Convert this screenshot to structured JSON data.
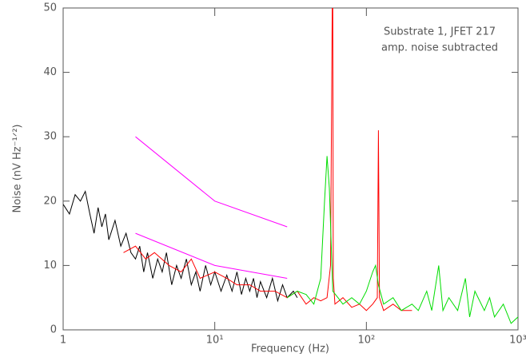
{
  "chart_data": {
    "type": "line",
    "xlabel": "Frequency (Hz)",
    "ylabel": "Noise (nV Hz⁻¹ᐟ²)",
    "annotations": [
      "Substrate 1, JFET 217",
      "amp. noise subtracted"
    ],
    "xscale": "log",
    "xlim": [
      1,
      1000
    ],
    "ylim": [
      0,
      50
    ],
    "xticks": [
      {
        "value": 1,
        "label": "1"
      },
      {
        "value": 10,
        "label": "10¹"
      },
      {
        "value": 100,
        "label": "10²"
      },
      {
        "value": 1000,
        "label": "10³"
      }
    ],
    "yticks": [
      0,
      10,
      20,
      30,
      40,
      50
    ],
    "series": [
      {
        "color": "#000000",
        "x": [
          1,
          1.1,
          1.2,
          1.3,
          1.4,
          1.5,
          1.6,
          1.7,
          1.8,
          1.9,
          2.0,
          2.2,
          2.4,
          2.6,
          2.8,
          3.0,
          3.2,
          3.4,
          3.6,
          3.9,
          4.2,
          4.5,
          4.8,
          5.2,
          5.6,
          6,
          6.5,
          7,
          7.5,
          8,
          8.7,
          9.4,
          10,
          11,
          12,
          13,
          14,
          15,
          16,
          17,
          18,
          19,
          20,
          22,
          24,
          26,
          28,
          30,
          33,
          35
        ],
        "values": [
          19.5,
          18,
          21,
          20,
          21.5,
          18,
          15,
          19,
          16,
          18,
          14,
          17,
          13,
          15,
          12,
          11,
          13,
          9,
          12,
          8,
          11,
          9,
          12,
          7,
          10,
          8,
          11,
          7,
          9,
          6,
          10,
          7,
          9,
          6,
          8.5,
          6,
          9,
          5.5,
          8,
          6,
          8,
          5,
          7.5,
          5,
          8,
          4.5,
          7,
          5,
          6,
          5
        ]
      },
      {
        "color": "#ff0000",
        "x": [
          2.5,
          3,
          3.5,
          4,
          5,
          6,
          7,
          8,
          10,
          12,
          14,
          17,
          20,
          25,
          30,
          35,
          40,
          45,
          50,
          55,
          58,
          59.5,
          60,
          60.5,
          62,
          70,
          80,
          90,
          100,
          110,
          118,
          120,
          122,
          130,
          150,
          170,
          200
        ],
        "values": [
          12,
          13,
          11,
          12,
          10,
          9,
          11,
          8,
          9,
          8,
          7,
          7,
          6,
          6,
          5,
          6,
          4,
          5,
          4.5,
          5,
          10,
          50,
          50,
          8,
          4,
          5,
          3.5,
          4,
          3,
          4,
          5,
          31,
          5,
          3,
          4,
          3,
          3
        ]
      },
      {
        "color": "#00dd00",
        "x": [
          30,
          35,
          40,
          45,
          50,
          53,
          55,
          57,
          60,
          65,
          70,
          80,
          90,
          100,
          110,
          115,
          120,
          130,
          150,
          170,
          200,
          220,
          250,
          270,
          300,
          320,
          350,
          400,
          450,
          480,
          520,
          600,
          650,
          700,
          800,
          900,
          1000
        ],
        "values": [
          5,
          6,
          5.5,
          4,
          8,
          20,
          27,
          22,
          6,
          5,
          4,
          5,
          4,
          6,
          9,
          10,
          7,
          4,
          5,
          3,
          4,
          3,
          6,
          3,
          10,
          3,
          5,
          3,
          8,
          2,
          6,
          3,
          5,
          2,
          4,
          1,
          2
        ]
      },
      {
        "color": "#ff00ff",
        "x": [
          3,
          10,
          30
        ],
        "values": [
          30,
          20,
          16
        ]
      },
      {
        "color": "#ff00ff",
        "x": [
          3,
          10,
          30
        ],
        "values": [
          15,
          10,
          8
        ]
      }
    ]
  }
}
